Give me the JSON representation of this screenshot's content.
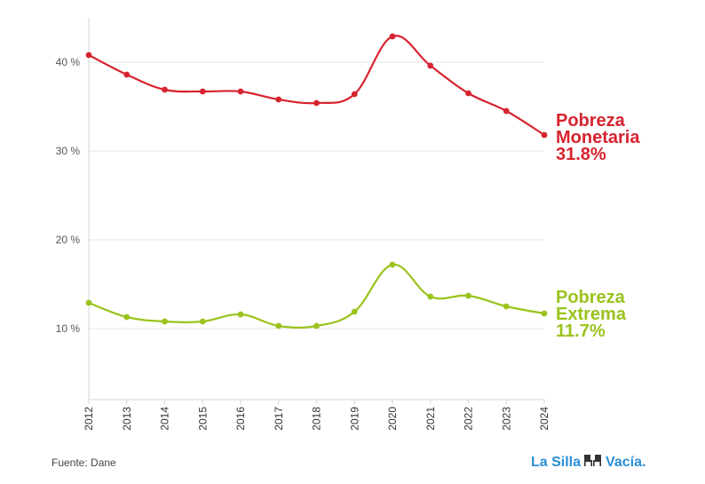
{
  "chart_data": {
    "type": "line",
    "title": "",
    "x": [
      "2012",
      "2013",
      "2014",
      "2015",
      "2016",
      "2017",
      "2018",
      "2019",
      "2020",
      "2021",
      "2022",
      "2023",
      "2024"
    ],
    "ylim": [
      2,
      45
    ],
    "yticks": [
      10,
      20,
      30,
      40
    ],
    "ytick_labels": [
      "10 %",
      "20 %",
      "30 %",
      "40 %"
    ],
    "grid": true,
    "series": [
      {
        "name": "Pobreza Monetaria",
        "label_lines": [
          "Pobreza",
          "Monetaria",
          "31.8%"
        ],
        "color": "#d7232f",
        "values": [
          40.8,
          38.6,
          36.9,
          36.7,
          36.7,
          35.8,
          35.4,
          36.4,
          42.9,
          39.6,
          36.5,
          34.5,
          31.8
        ]
      },
      {
        "name": "Pobreza Extrema",
        "label_lines": [
          "Pobreza",
          "Extrema",
          "11.7%"
        ],
        "color": "#9ac31c",
        "values": [
          12.9,
          11.3,
          10.8,
          10.8,
          11.6,
          10.3,
          10.3,
          11.9,
          17.2,
          13.6,
          13.7,
          12.5,
          11.7
        ]
      }
    ]
  },
  "footer": {
    "source": "Fuente: Dane",
    "brand_left": "La Silla",
    "brand_right": "Vacía.",
    "brand_color": "#2b8fd6"
  }
}
